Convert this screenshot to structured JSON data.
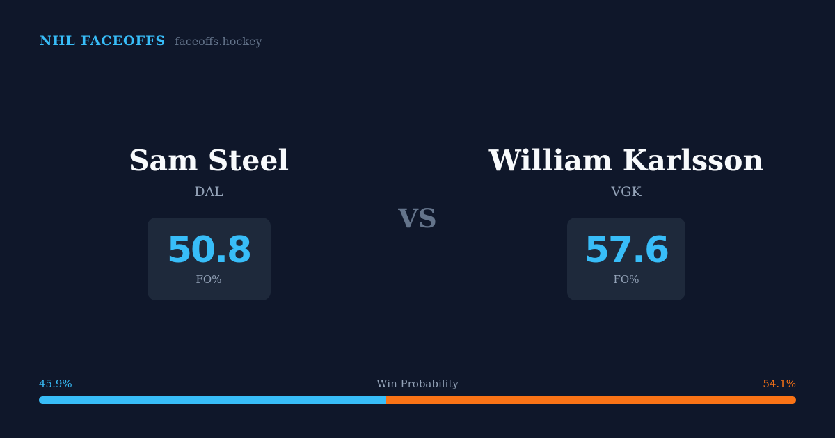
{
  "brand": {
    "name": "NHL FACEOFFS",
    "site": "faceoffs.hockey"
  },
  "player_left": {
    "name": "Sam Steel",
    "team": "DAL",
    "stat_value": "50.8",
    "stat_label": "FO%"
  },
  "vs_label": "VS",
  "player_right": {
    "name": "William Karlsson",
    "team": "VGK",
    "stat_value": "57.6",
    "stat_label": "FO%"
  },
  "win_probability": {
    "title": "Win Probability",
    "left_label": "45.9%",
    "right_label": "54.1%",
    "left_value": 45.9,
    "right_value": 54.1,
    "left_color": "#38bdf8",
    "right_color": "#f97316"
  }
}
